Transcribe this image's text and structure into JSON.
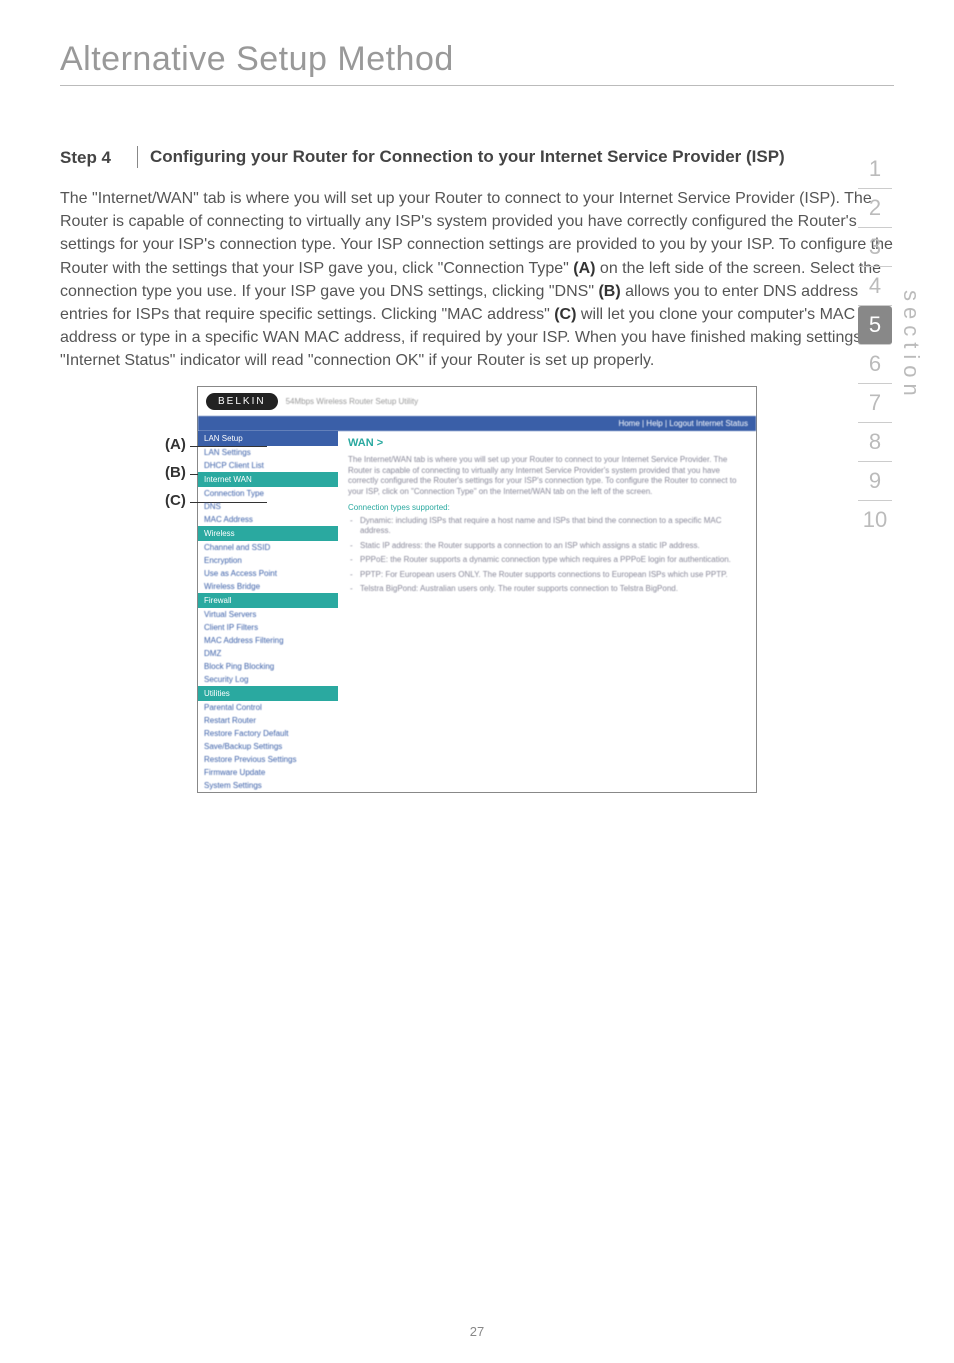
{
  "page": {
    "title": "Alternative Setup Method",
    "number": "27"
  },
  "step": {
    "label": "Step 4",
    "heading": "Configuring your Router for Connection to your Internet Service Provider (ISP)"
  },
  "body": {
    "p1a": "The \"Internet/WAN\" tab is where you will set up your Router to connect to your Internet Service Provider (ISP). The Router is capable of connecting to virtually any ISP's system provided you have correctly configured the Router's settings for your ISP's connection type. Your ISP connection settings are provided to you by your ISP. To configure the Router with the settings that your ISP gave you, click \"Connection Type\" ",
    "A": "(A)",
    "p1b": " on the left side of the screen. Select the connection type you use. If your ISP gave you DNS settings, clicking \"DNS\" ",
    "B": "(B)",
    "p1c": " allows you to enter DNS address entries for ISPs that require specific settings. Clicking \"MAC address\" ",
    "C": "(C)",
    "p1d": " will let you clone your computer's MAC address or type in a specific WAN MAC address, if required by your ISP. When you have finished making settings, the \"Internet Status\" indicator will read \"connection OK\" if your Router is set up properly."
  },
  "nav": {
    "label": "section",
    "items": [
      "1",
      "2",
      "3",
      "4",
      "5",
      "6",
      "7",
      "8",
      "9",
      "10"
    ],
    "active_index": 4
  },
  "callouts": {
    "A": "(A)",
    "B": "(B)",
    "C": "(C)"
  },
  "shot": {
    "brand": "BELKIN",
    "subtitle": "54Mbps Wireless Router Setup Utility",
    "bluebar": "Home | Help | Logout    Internet Status",
    "wan": "WAN >",
    "para": "The Internet/WAN tab is where you will set up your Router to connect to your Internet Service Provider. The Router is capable of connecting to virtually any Internet Service Provider's system provided that you have correctly configured the Router's settings for your ISP's connection type. To configure the Router to connect to your ISP, click on \"Connection Type\" on the Internet/WAN tab on the left of the screen.",
    "subh": "Connection types supported:",
    "b1": "Dynamic: including ISPs that require a host name and ISPs that bind the connection to a specific MAC address.",
    "b2": "Static IP address: the Router supports a connection to an ISP which assigns a static IP address.",
    "b3": "PPPoE: the Router supports a dynamic connection type which requires a PPPoE login for authentication.",
    "b4": "PPTP: For European users ONLY. The Router supports connections to European ISPs which use PPTP.",
    "b5": "Telstra BigPond: Australian users only. The router supports connection to Telstra BigPond.",
    "left": {
      "band1": "LAN Setup",
      "i1": "LAN Settings",
      "i2": "DHCP Client List",
      "band2": "Internet WAN",
      "i3": "Connection Type",
      "i4": "DNS",
      "i5": "MAC Address",
      "band3": "Wireless",
      "i6": "Channel and SSID",
      "i7": "Encryption",
      "i8": "Use as Access Point",
      "i9": "Wireless Bridge",
      "band4": "Firewall",
      "i10": "Virtual Servers",
      "i11": "Client IP Filters",
      "i12": "MAC Address Filtering",
      "i13": "DMZ",
      "i14": "Block Ping Blocking",
      "i15": "Security Log",
      "band5": "Utilities",
      "i16": "Parental Control",
      "i17": "Restart Router",
      "i18": "Restore Factory Default",
      "i19": "Save/Backup Settings",
      "i20": "Restore Previous Settings",
      "i21": "Firmware Update",
      "i22": "System Settings"
    }
  }
}
